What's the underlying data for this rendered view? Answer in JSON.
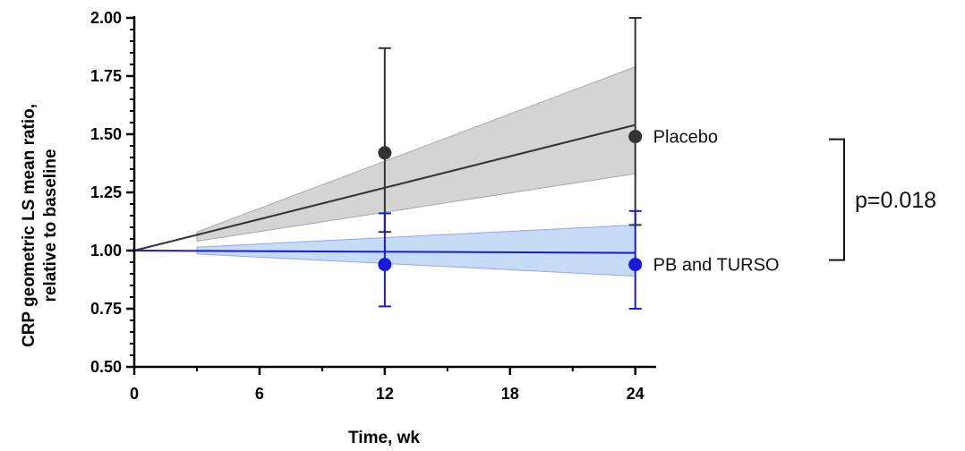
{
  "chart_data": {
    "type": "line",
    "xlabel": "Time, wk",
    "ylabel": [
      "CRP geometric LS mean ratio,",
      "relative to baseline"
    ],
    "xlim": [
      0,
      25
    ],
    "ylim": [
      0.5,
      2.0
    ],
    "x_ticks": [
      0,
      6,
      12,
      18,
      24
    ],
    "y_ticks": [
      0.5,
      0.75,
      1.0,
      1.25,
      1.5,
      1.75,
      2.0
    ],
    "x_tick_labels": [
      "0",
      "6",
      "12",
      "18",
      "24"
    ],
    "y_tick_labels": [
      "0.50",
      "0.75",
      "1.00",
      "1.25",
      "1.50",
      "1.75",
      "2.00"
    ],
    "series": [
      {
        "name": "Placebo",
        "color": "#333333",
        "band_color": "#cccccc",
        "fit_line": [
          [
            0,
            1.0
          ],
          [
            24,
            1.54
          ]
        ],
        "band_upper": [
          [
            3,
            1.08
          ],
          [
            24,
            1.79
          ]
        ],
        "band_lower": [
          [
            3,
            1.04
          ],
          [
            24,
            1.33
          ]
        ],
        "points": [
          {
            "x": 12,
            "y": 1.42,
            "lo": 1.08,
            "hi": 1.87
          },
          {
            "x": 24,
            "y": 1.49,
            "lo": 1.11,
            "hi": 2.0
          }
        ]
      },
      {
        "name": "PB and TURSO",
        "color": "#1a1ad6",
        "band_color": "#bcd6f5",
        "fit_line": [
          [
            0,
            1.0
          ],
          [
            24,
            0.99
          ]
        ],
        "band_upper": [
          [
            3,
            1.015
          ],
          [
            24,
            1.11
          ]
        ],
        "band_lower": [
          [
            3,
            0.985
          ],
          [
            24,
            0.89
          ]
        ],
        "points": [
          {
            "x": 12,
            "y": 0.94,
            "lo": 0.76,
            "hi": 1.16
          },
          {
            "x": 24,
            "y": 0.94,
            "lo": 0.75,
            "hi": 1.17
          }
        ]
      }
    ],
    "annotation": {
      "text": "p=0.018",
      "between": [
        "Placebo",
        "PB and TURSO"
      ]
    }
  }
}
